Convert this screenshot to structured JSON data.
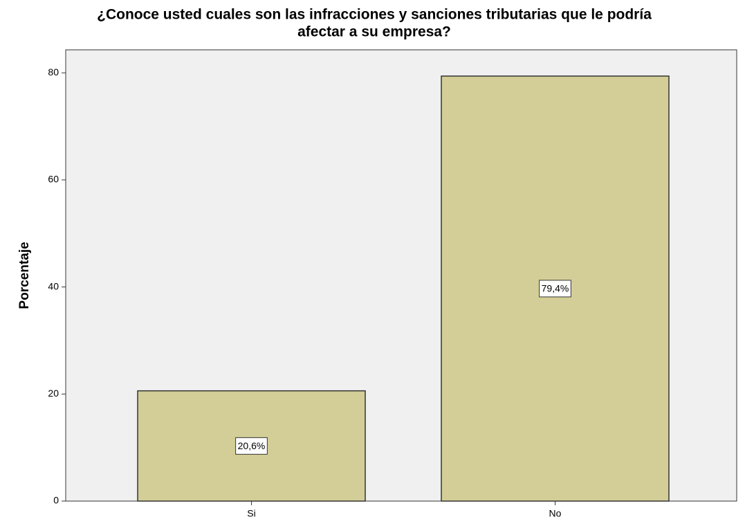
{
  "chart_data": {
    "type": "bar",
    "title": [
      "¿Conoce usted cuales son las infracciones y sanciones tributarias que le podría",
      "afectar a su empresa?"
    ],
    "y_label": "Porcentaje",
    "categories": [
      "Si",
      "No"
    ],
    "values": [
      20.6,
      79.4
    ],
    "value_labels": [
      "20,6%",
      "79,4%"
    ],
    "color": "#d3ce97",
    "ylim": [
      0,
      84.3
    ],
    "yticks": [
      0,
      20,
      40,
      60,
      80
    ],
    "grid": false
  }
}
